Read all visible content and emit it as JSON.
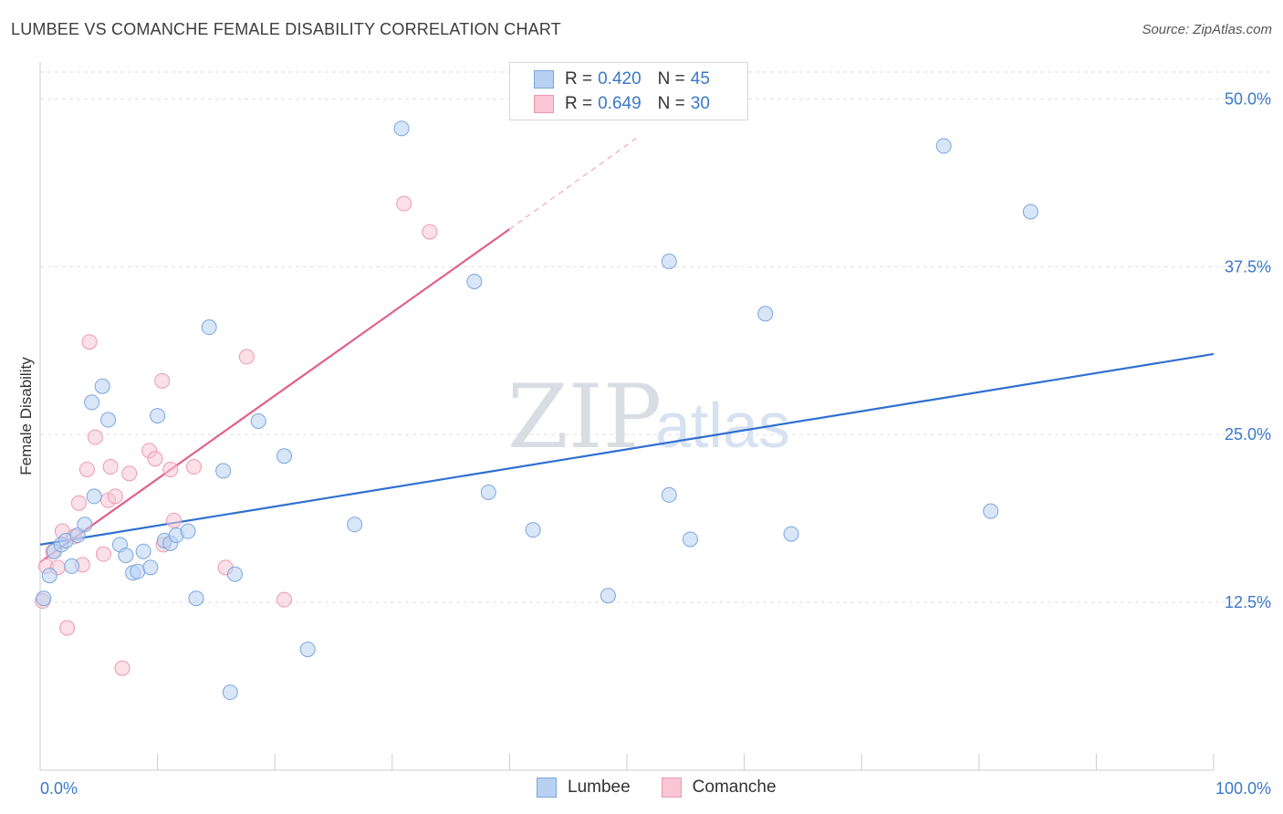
{
  "title": "LUMBEE VS COMANCHE FEMALE DISABILITY CORRELATION CHART",
  "source": "Source: ZipAtlas.com",
  "colors": {
    "lumbee_fill": "#b8d1f2",
    "lumbee_stroke": "#7aa6e0",
    "lumbee_line": "#2f6fd0",
    "comanche_fill": "#f8c6d4",
    "comanche_stroke": "#ee98b2",
    "comanche_line": "#e0608a",
    "tick_text": "#3a78c9"
  },
  "legend": {
    "rows": [
      {
        "r_label": "R =",
        "r_value": "0.420",
        "n_label": "N =",
        "n_value": "45"
      },
      {
        "r_label": "R =",
        "r_value": "0.649",
        "n_label": "N =",
        "n_value": "30"
      }
    ]
  },
  "bottom_legend": {
    "lumbee": "Lumbee",
    "comanche": "Comanche"
  },
  "chart_data": {
    "type": "scatter",
    "title": "LUMBEE VS COMANCHE FEMALE DISABILITY CORRELATION CHART",
    "xlabel": "",
    "ylabel": "Female Disability",
    "xlim": [
      0,
      100
    ],
    "ylim": [
      0,
      52
    ],
    "x_tick_labels": [
      "0.0%",
      "100.0%"
    ],
    "y_ticks": [
      12.5,
      25.0,
      37.5,
      50.0
    ],
    "y_tick_labels": [
      "12.5%",
      "25.0%",
      "37.5%",
      "50.0%"
    ],
    "grid": "horizontal dashed",
    "legend_position": "top-center",
    "series": [
      {
        "name": "Lumbee",
        "points": [
          [
            0.3,
            12.8
          ],
          [
            0.8,
            14.5
          ],
          [
            1.2,
            16.3
          ],
          [
            1.8,
            16.8
          ],
          [
            2.2,
            17.1
          ],
          [
            2.7,
            15.2
          ],
          [
            3.2,
            17.5
          ],
          [
            3.8,
            18.3
          ],
          [
            4.4,
            27.4
          ],
          [
            4.6,
            20.4
          ],
          [
            5.3,
            28.6
          ],
          [
            5.8,
            26.1
          ],
          [
            6.8,
            16.8
          ],
          [
            7.3,
            16.0
          ],
          [
            7.9,
            14.7
          ],
          [
            8.3,
            14.8
          ],
          [
            8.8,
            16.3
          ],
          [
            9.4,
            15.1
          ],
          [
            10.0,
            26.4
          ],
          [
            10.6,
            17.1
          ],
          [
            11.1,
            16.9
          ],
          [
            11.6,
            17.5
          ],
          [
            12.6,
            17.8
          ],
          [
            13.3,
            12.8
          ],
          [
            14.4,
            33.0
          ],
          [
            15.6,
            22.3
          ],
          [
            16.2,
            5.8
          ],
          [
            16.6,
            14.6
          ],
          [
            18.6,
            26.0
          ],
          [
            20.8,
            23.4
          ],
          [
            22.8,
            9.0
          ],
          [
            26.8,
            18.3
          ],
          [
            30.8,
            47.8
          ],
          [
            37.0,
            36.4
          ],
          [
            38.2,
            20.7
          ],
          [
            42.0,
            17.9
          ],
          [
            48.4,
            13.0
          ],
          [
            53.6,
            37.9
          ],
          [
            53.6,
            20.5
          ],
          [
            55.4,
            17.2
          ],
          [
            61.8,
            34.0
          ],
          [
            64.0,
            17.6
          ],
          [
            81.0,
            19.3
          ],
          [
            84.4,
            41.6
          ],
          [
            77.0,
            46.5
          ]
        ],
        "trend": {
          "x": [
            0,
            100
          ],
          "y": [
            16.8,
            31.0
          ]
        }
      },
      {
        "name": "Comanche",
        "points": [
          [
            0.2,
            12.6
          ],
          [
            0.5,
            15.2
          ],
          [
            1.1,
            16.3
          ],
          [
            1.5,
            15.1
          ],
          [
            1.9,
            17.8
          ],
          [
            2.3,
            10.6
          ],
          [
            2.9,
            17.4
          ],
          [
            3.3,
            19.9
          ],
          [
            3.6,
            15.3
          ],
          [
            4.0,
            22.4
          ],
          [
            4.2,
            31.9
          ],
          [
            4.7,
            24.8
          ],
          [
            5.4,
            16.1
          ],
          [
            5.8,
            20.1
          ],
          [
            6.0,
            22.6
          ],
          [
            6.4,
            20.4
          ],
          [
            7.0,
            7.6
          ],
          [
            7.6,
            22.1
          ],
          [
            9.3,
            23.8
          ],
          [
            9.8,
            23.2
          ],
          [
            10.4,
            29.0
          ],
          [
            10.5,
            16.8
          ],
          [
            11.1,
            22.4
          ],
          [
            11.4,
            18.6
          ],
          [
            13.1,
            22.6
          ],
          [
            15.8,
            15.1
          ],
          [
            17.6,
            30.8
          ],
          [
            20.8,
            12.7
          ],
          [
            31.0,
            42.2
          ],
          [
            33.2,
            40.1
          ]
        ],
        "trend": {
          "x": [
            0,
            40
          ],
          "y": [
            15.5,
            40.3
          ]
        },
        "trend_dashed": {
          "x": [
            40,
            51
          ],
          "y": [
            40.3,
            47.2
          ]
        }
      }
    ]
  }
}
